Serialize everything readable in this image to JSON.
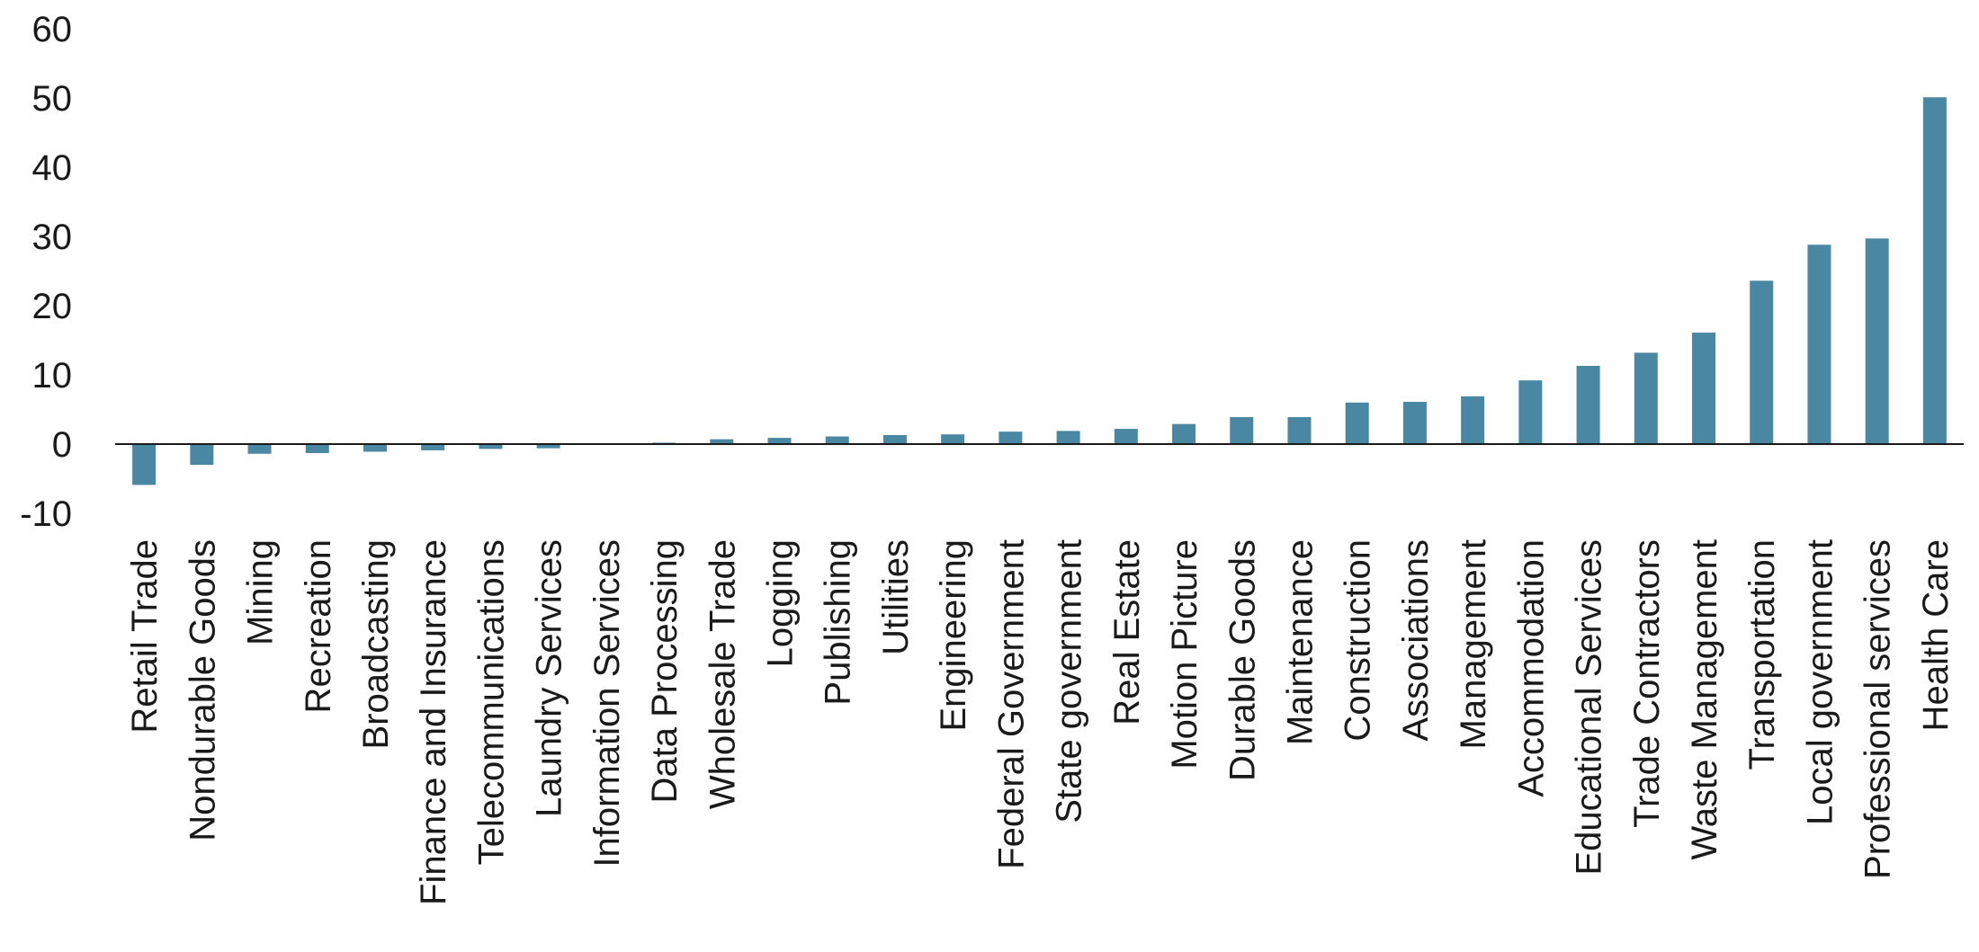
{
  "chart_data": {
    "type": "bar",
    "title": "",
    "xlabel": "",
    "ylabel": "",
    "ylim": [
      -10,
      60
    ],
    "yticks": [
      60,
      50,
      40,
      30,
      20,
      10,
      0,
      -10
    ],
    "ytick_labels": [
      "60",
      "50",
      "40",
      "30",
      "20",
      "10",
      "0",
      "-10"
    ],
    "grid": false,
    "legend": "none",
    "bar_color": "#4a87a3",
    "categories": [
      "Retail Trade",
      "Nondurable Goods",
      "Mining",
      "Recreation",
      "Broadcasting",
      "Finance and Insurance",
      "Telecommunications",
      "Laundry Services",
      "Information Services",
      "Data Processing",
      "Wholesale Trade",
      "Logging",
      "Publishing",
      "Utilities",
      "Engineering",
      "Federal Government",
      "State government",
      "Real Estate",
      "Motion Picture",
      "Durable Goods",
      "Maintenance",
      "Construction",
      "Associations",
      "Management",
      "Accommodation",
      "Educational Services",
      "Trade Contractors",
      "Waste Management",
      "Transportation",
      "Local government",
      "Professional services",
      "Health Care"
    ],
    "values": [
      -5.9,
      -3.0,
      -1.4,
      -1.3,
      -1.1,
      -0.9,
      -0.7,
      -0.6,
      0.0,
      0.2,
      0.7,
      0.9,
      1.1,
      1.3,
      1.4,
      1.8,
      1.9,
      2.2,
      2.9,
      3.9,
      3.9,
      6.0,
      6.1,
      6.9,
      9.2,
      11.3,
      13.2,
      16.1,
      23.6,
      28.8,
      29.7,
      50.1
    ]
  }
}
